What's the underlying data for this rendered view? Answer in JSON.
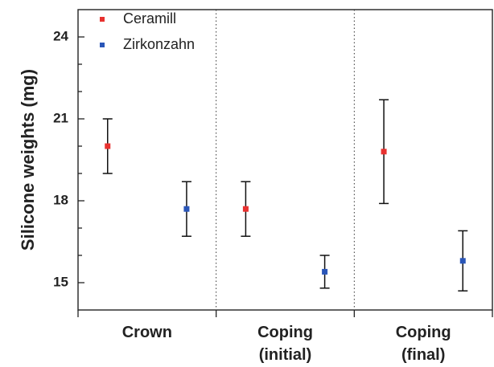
{
  "chart_data": {
    "type": "scatter",
    "title": "",
    "xlabel": "",
    "ylabel": "Silicone weights (mg)",
    "ylim": [
      14.0,
      25.0
    ],
    "yticks": [
      15,
      18,
      21,
      24
    ],
    "grid": false,
    "legend_position": "top-left",
    "categories": [
      {
        "name": "crown",
        "lines": [
          "Crown"
        ]
      },
      {
        "name": "coping-initial",
        "lines": [
          "Coping",
          "(initial)"
        ]
      },
      {
        "name": "coping-final",
        "lines": [
          "Coping",
          "(final)"
        ]
      }
    ],
    "series": [
      {
        "name": "Ceramill",
        "color": "#e8312f",
        "values": [
          20.0,
          17.7,
          19.8
        ],
        "error_low": [
          19.0,
          16.7,
          17.9
        ],
        "error_high": [
          21.0,
          18.7,
          21.7
        ]
      },
      {
        "name": "Zirkonzahn",
        "color": "#2a56b8",
        "values": [
          17.7,
          15.4,
          15.8
        ],
        "error_low": [
          16.7,
          14.8,
          14.7
        ],
        "error_high": [
          18.7,
          16.0,
          16.9
        ]
      }
    ],
    "separators": "dotted"
  }
}
